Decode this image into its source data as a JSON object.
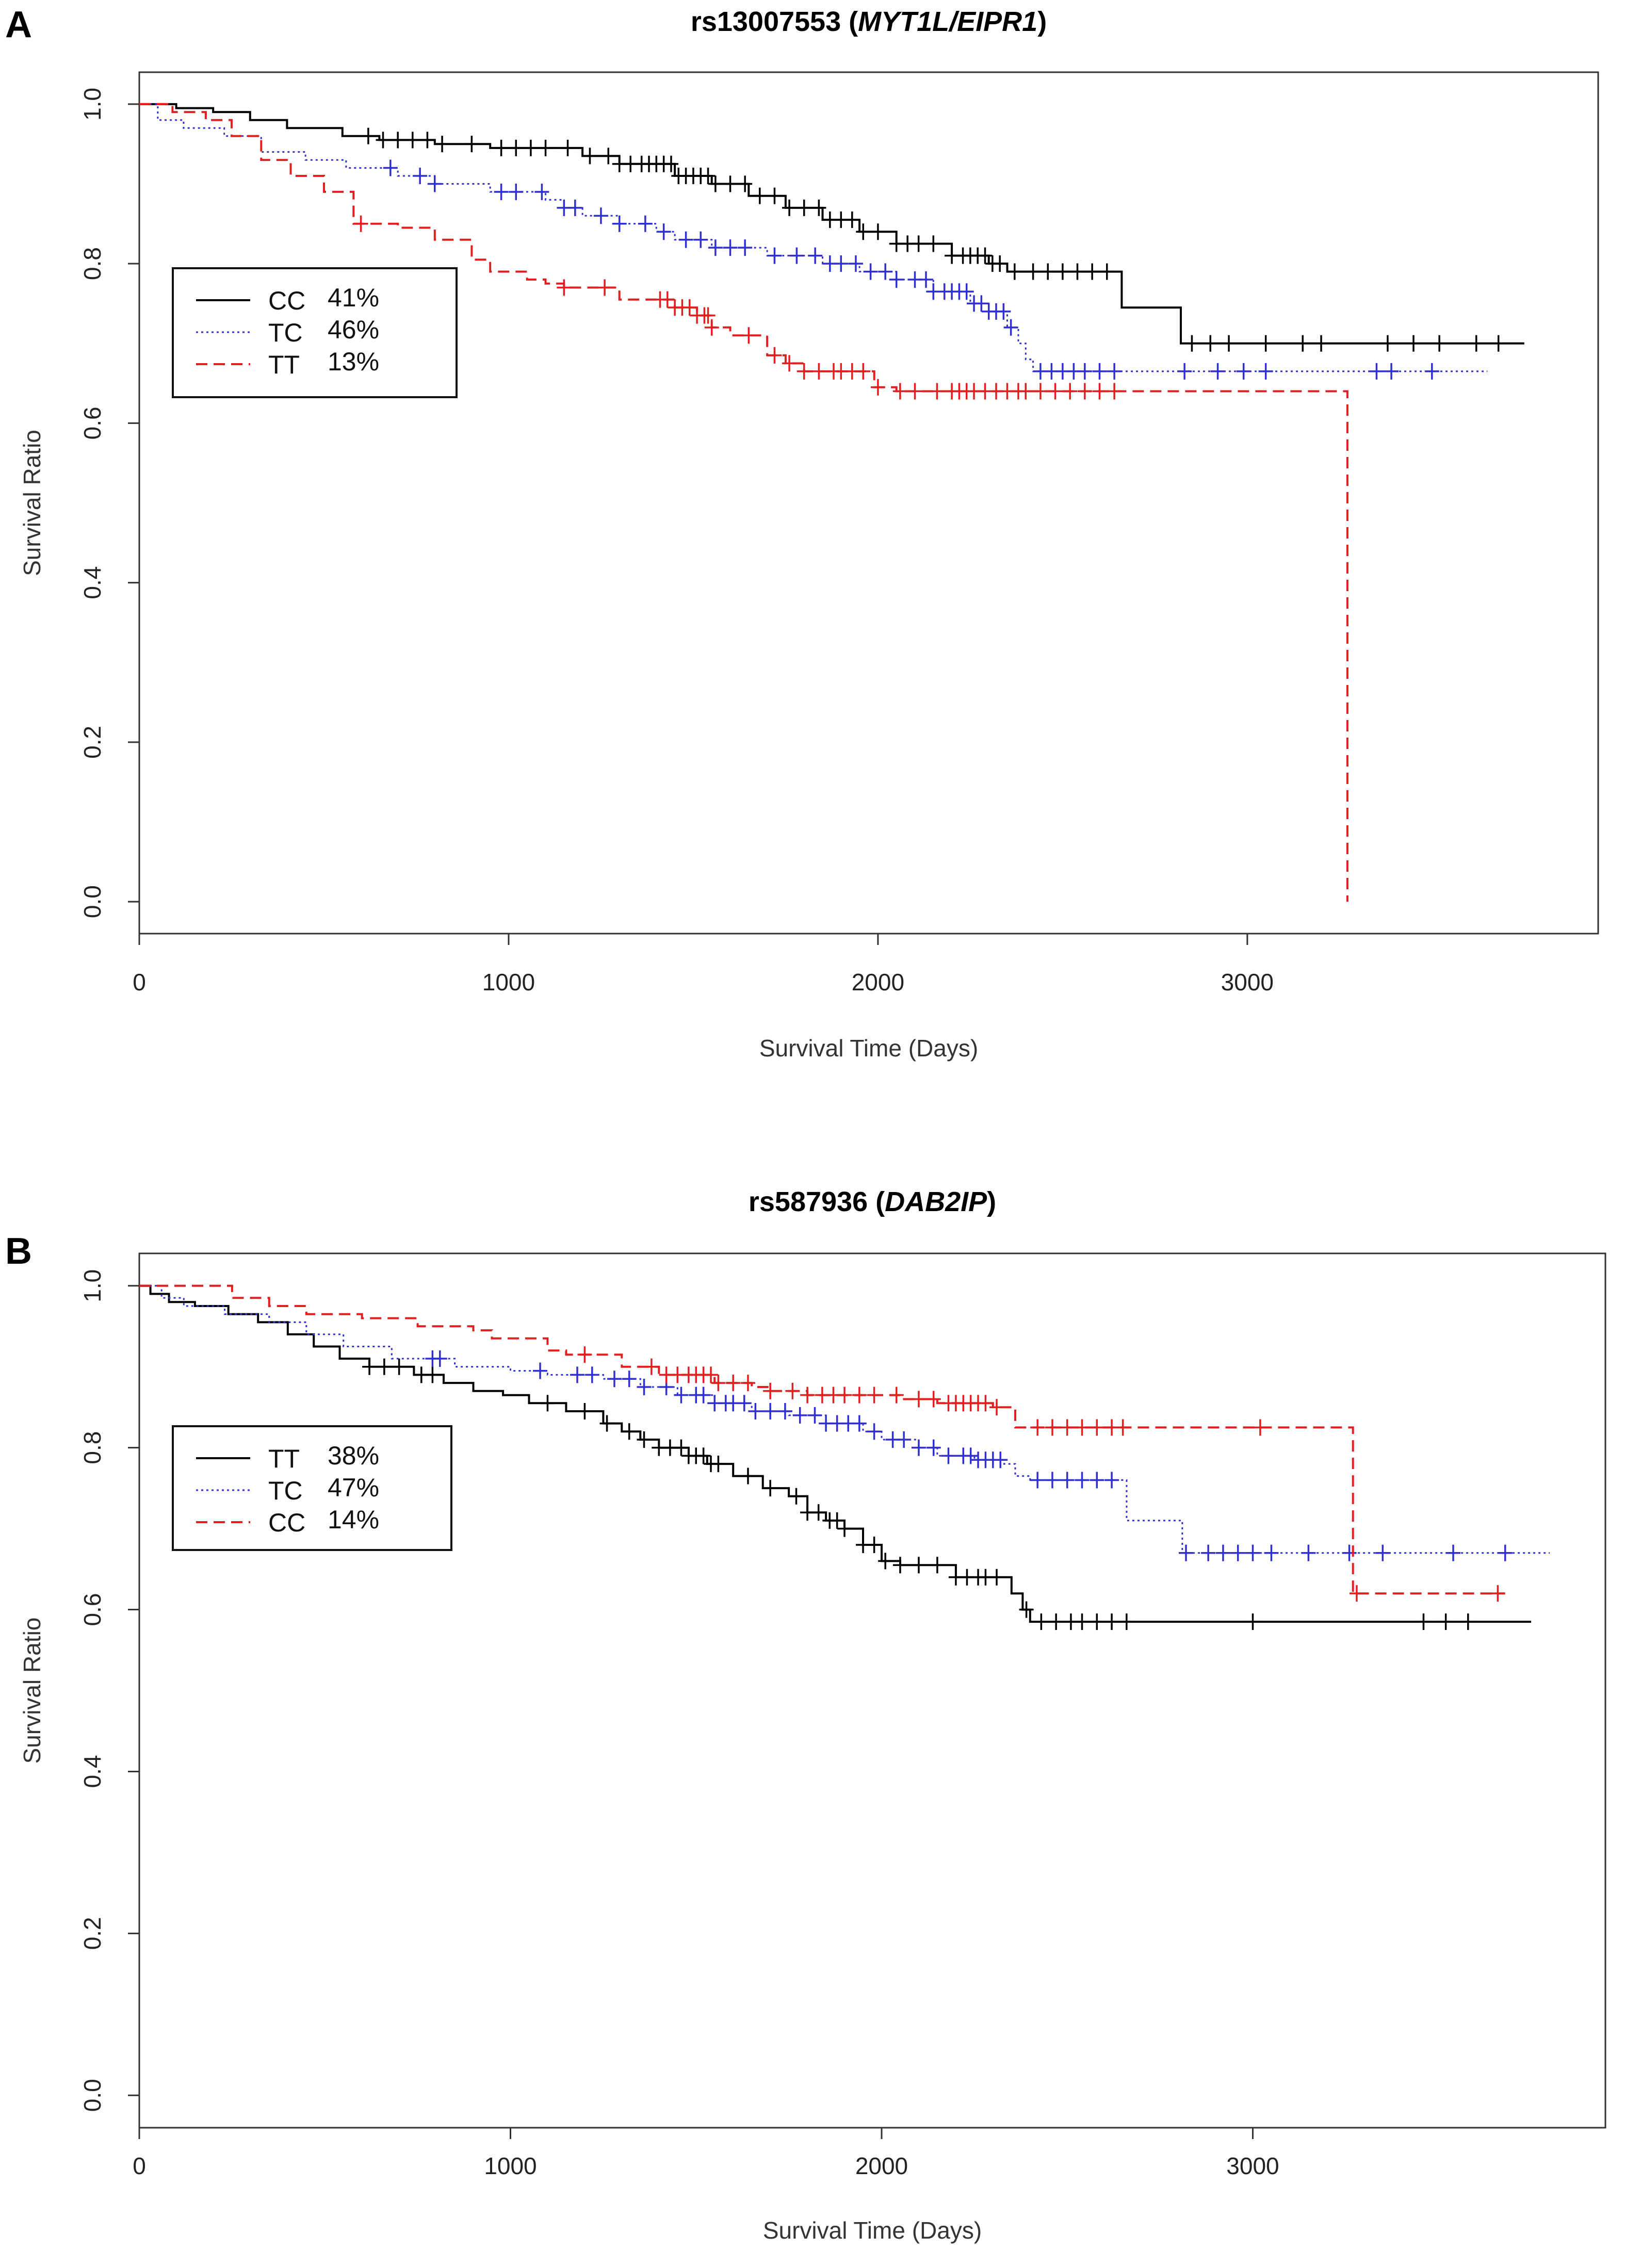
{
  "chart_data": [
    {
      "panel": "A",
      "type": "line",
      "title_plain": "rs13007553 (",
      "title_italic": "MYT1L/EIPR1",
      "title_end": ")",
      "xlabel": "Survival Time (Days)",
      "ylabel": "Survival Ratio",
      "xlim": [
        0,
        3950
      ],
      "ylim": [
        -0.04,
        1.04
      ],
      "xticks": [
        0,
        1000,
        2000,
        3000
      ],
      "yticks": [
        0.0,
        0.2,
        0.4,
        0.6,
        0.8,
        1.0
      ],
      "xtick_labels": [
        "0",
        "1000",
        "2000",
        "3000"
      ],
      "ytick_labels": [
        "0.0",
        "0.2",
        "0.4",
        "0.6",
        "0.8",
        "1.0"
      ],
      "legend_position": "upper-left",
      "series": [
        {
          "name": "CC",
          "percent": "41%",
          "color": "#000000",
          "style": "solid",
          "steps": [
            [
              0,
              1.0
            ],
            [
              100,
              0.995
            ],
            [
              200,
              0.99
            ],
            [
              300,
              0.98
            ],
            [
              400,
              0.97
            ],
            [
              550,
              0.96
            ],
            [
              650,
              0.955
            ],
            [
              800,
              0.95
            ],
            [
              950,
              0.945
            ],
            [
              1200,
              0.935
            ],
            [
              1300,
              0.925
            ],
            [
              1450,
              0.91
            ],
            [
              1550,
              0.9
            ],
            [
              1650,
              0.885
            ],
            [
              1750,
              0.87
            ],
            [
              1850,
              0.855
            ],
            [
              1950,
              0.84
            ],
            [
              2050,
              0.825
            ],
            [
              2200,
              0.81
            ],
            [
              2300,
              0.8
            ],
            [
              2350,
              0.79
            ],
            [
              2650,
              0.79
            ],
            [
              2660,
              0.745
            ],
            [
              2810,
              0.745
            ],
            [
              2820,
              0.7
            ],
            [
              3750,
              0.7
            ]
          ],
          "censors": [
            620,
            660,
            700,
            740,
            780,
            820,
            900,
            980,
            1020,
            1060,
            1100,
            1160,
            1220,
            1270,
            1300,
            1330,
            1360,
            1380,
            1400,
            1420,
            1440,
            1460,
            1480,
            1500,
            1520,
            1540,
            1560,
            1600,
            1640,
            1680,
            1720,
            1760,
            1800,
            1840,
            1870,
            1900,
            1930,
            1960,
            2000,
            2050,
            2080,
            2110,
            2150,
            2200,
            2230,
            2250,
            2270,
            2290,
            2310,
            2330,
            2370,
            2420,
            2460,
            2500,
            2540,
            2580,
            2620,
            2850,
            2900,
            2950,
            3050,
            3150,
            3200,
            3380,
            3450,
            3520,
            3620,
            3680
          ]
        },
        {
          "name": "TC",
          "percent": "46%",
          "color": "#3030d0",
          "style": "dotted",
          "steps": [
            [
              0,
              1.0
            ],
            [
              50,
              0.98
            ],
            [
              120,
              0.97
            ],
            [
              230,
              0.96
            ],
            [
              330,
              0.94
            ],
            [
              450,
              0.93
            ],
            [
              560,
              0.92
            ],
            [
              700,
              0.91
            ],
            [
              800,
              0.9
            ],
            [
              950,
              0.89
            ],
            [
              1100,
              0.88
            ],
            [
              1150,
              0.87
            ],
            [
              1200,
              0.86
            ],
            [
              1300,
              0.85
            ],
            [
              1400,
              0.84
            ],
            [
              1450,
              0.83
            ],
            [
              1550,
              0.82
            ],
            [
              1700,
              0.81
            ],
            [
              1850,
              0.8
            ],
            [
              1950,
              0.79
            ],
            [
              2050,
              0.78
            ],
            [
              2150,
              0.765
            ],
            [
              2250,
              0.75
            ],
            [
              2300,
              0.74
            ],
            [
              2350,
              0.72
            ],
            [
              2380,
              0.7
            ],
            [
              2400,
              0.68
            ],
            [
              2420,
              0.665
            ],
            [
              3650,
              0.665
            ]
          ],
          "censors": [
            680,
            760,
            800,
            980,
            1020,
            1090,
            1150,
            1180,
            1250,
            1300,
            1370,
            1420,
            1480,
            1520,
            1560,
            1600,
            1640,
            1720,
            1780,
            1830,
            1870,
            1900,
            1940,
            1980,
            2020,
            2050,
            2100,
            2130,
            2150,
            2180,
            2200,
            2220,
            2240,
            2260,
            2280,
            2300,
            2320,
            2340,
            2360,
            2440,
            2470,
            2500,
            2530,
            2560,
            2600,
            2640,
            2830,
            2920,
            2990,
            3050,
            3350,
            3390,
            3500
          ]
        },
        {
          "name": "TT",
          "percent": "13%",
          "color": "#e02020",
          "style": "dashed",
          "steps": [
            [
              0,
              1.0
            ],
            [
              90,
              0.99
            ],
            [
              180,
              0.98
            ],
            [
              250,
              0.96
            ],
            [
              330,
              0.93
            ],
            [
              410,
              0.91
            ],
            [
              500,
              0.89
            ],
            [
              580,
              0.85
            ],
            [
              700,
              0.845
            ],
            [
              800,
              0.83
            ],
            [
              900,
              0.805
            ],
            [
              950,
              0.79
            ],
            [
              1050,
              0.78
            ],
            [
              1100,
              0.775
            ],
            [
              1150,
              0.77
            ],
            [
              1300,
              0.755
            ],
            [
              1450,
              0.745
            ],
            [
              1510,
              0.735
            ],
            [
              1550,
              0.72
            ],
            [
              1600,
              0.71
            ],
            [
              1700,
              0.685
            ],
            [
              1750,
              0.675
            ],
            [
              1800,
              0.665
            ],
            [
              1990,
              0.645
            ],
            [
              2050,
              0.64
            ],
            [
              3270,
              0.64
            ],
            [
              3271,
              0.0
            ]
          ],
          "censors": [
            600,
            1150,
            1260,
            1410,
            1430,
            1450,
            1470,
            1490,
            1510,
            1530,
            1540,
            1550,
            1650,
            1720,
            1760,
            1800,
            1840,
            1880,
            1900,
            1930,
            1960,
            2000,
            2060,
            2100,
            2160,
            2200,
            2220,
            2240,
            2260,
            2290,
            2320,
            2350,
            2380,
            2400,
            2440,
            2480,
            2520,
            2560,
            2600,
            2640
          ]
        }
      ]
    },
    {
      "panel": "B",
      "type": "line",
      "title_plain": "rs587936 (",
      "title_italic": "DAB2IP",
      "title_end": ")",
      "xlabel": "Survival Time (Days)",
      "ylabel": "Survival Ratio",
      "xlim": [
        0,
        3950
      ],
      "ylim": [
        -0.04,
        1.04
      ],
      "xticks": [
        0,
        1000,
        2000,
        3000
      ],
      "yticks": [
        0.0,
        0.2,
        0.4,
        0.6,
        0.8,
        1.0
      ],
      "xtick_labels": [
        "0",
        "1000",
        "2000",
        "3000"
      ],
      "ytick_labels": [
        "0.0",
        "0.2",
        "0.4",
        "0.6",
        "0.8",
        "1.0"
      ],
      "legend_position": "middle-left",
      "series": [
        {
          "name": "TT",
          "percent": "38%",
          "color": "#000000",
          "style": "solid",
          "steps": [
            [
              0,
              1.0
            ],
            [
              30,
              0.99
            ],
            [
              80,
              0.98
            ],
            [
              150,
              0.975
            ],
            [
              240,
              0.965
            ],
            [
              320,
              0.955
            ],
            [
              400,
              0.94
            ],
            [
              470,
              0.925
            ],
            [
              540,
              0.91
            ],
            [
              620,
              0.9
            ],
            [
              740,
              0.89
            ],
            [
              820,
              0.88
            ],
            [
              900,
              0.87
            ],
            [
              980,
              0.865
            ],
            [
              1050,
              0.855
            ],
            [
              1150,
              0.845
            ],
            [
              1250,
              0.83
            ],
            [
              1300,
              0.82
            ],
            [
              1350,
              0.81
            ],
            [
              1400,
              0.8
            ],
            [
              1480,
              0.79
            ],
            [
              1530,
              0.78
            ],
            [
              1600,
              0.765
            ],
            [
              1680,
              0.75
            ],
            [
              1750,
              0.74
            ],
            [
              1800,
              0.72
            ],
            [
              1850,
              0.71
            ],
            [
              1900,
              0.7
            ],
            [
              1950,
              0.68
            ],
            [
              2000,
              0.66
            ],
            [
              2050,
              0.655
            ],
            [
              2200,
              0.64
            ],
            [
              2350,
              0.62
            ],
            [
              2380,
              0.6
            ],
            [
              2400,
              0.585
            ],
            [
              3750,
              0.585
            ]
          ],
          "censors": [
            620,
            660,
            700,
            760,
            790,
            1100,
            1200,
            1260,
            1320,
            1360,
            1400,
            1430,
            1460,
            1480,
            1500,
            1520,
            1540,
            1560,
            1640,
            1700,
            1770,
            1800,
            1830,
            1860,
            1880,
            1900,
            1950,
            1980,
            2010,
            2050,
            2100,
            2150,
            2200,
            2230,
            2260,
            2280,
            2310,
            2390,
            2430,
            2470,
            2510,
            2540,
            2580,
            2620,
            2660,
            3000,
            3460,
            3520,
            3580
          ]
        },
        {
          "name": "TC",
          "percent": "47%",
          "color": "#3030d0",
          "style": "dotted",
          "steps": [
            [
              0,
              1.0
            ],
            [
              60,
              0.985
            ],
            [
              120,
              0.975
            ],
            [
              230,
              0.965
            ],
            [
              350,
              0.955
            ],
            [
              450,
              0.94
            ],
            [
              550,
              0.925
            ],
            [
              680,
              0.91
            ],
            [
              850,
              0.9
            ],
            [
              1000,
              0.895
            ],
            [
              1100,
              0.89
            ],
            [
              1250,
              0.885
            ],
            [
              1350,
              0.875
            ],
            [
              1450,
              0.865
            ],
            [
              1550,
              0.855
            ],
            [
              1650,
              0.845
            ],
            [
              1750,
              0.84
            ],
            [
              1850,
              0.83
            ],
            [
              1950,
              0.82
            ],
            [
              2000,
              0.81
            ],
            [
              2100,
              0.8
            ],
            [
              2150,
              0.79
            ],
            [
              2250,
              0.785
            ],
            [
              2330,
              0.78
            ],
            [
              2360,
              0.765
            ],
            [
              2400,
              0.76
            ],
            [
              2650,
              0.76
            ],
            [
              2660,
              0.71
            ],
            [
              2800,
              0.71
            ],
            [
              2810,
              0.67
            ],
            [
              3800,
              0.67
            ]
          ],
          "censors": [
            790,
            810,
            1080,
            1180,
            1220,
            1280,
            1320,
            1360,
            1420,
            1460,
            1500,
            1520,
            1550,
            1580,
            1600,
            1630,
            1660,
            1700,
            1740,
            1780,
            1820,
            1850,
            1880,
            1910,
            1940,
            1980,
            2030,
            2060,
            2100,
            2140,
            2180,
            2220,
            2240,
            2260,
            2280,
            2300,
            2320,
            2420,
            2460,
            2500,
            2540,
            2580,
            2620,
            2820,
            2880,
            2920,
            2960,
            3000,
            3050,
            3150,
            3260,
            3350,
            3540,
            3680
          ]
        },
        {
          "name": "CC",
          "percent": "14%",
          "color": "#e02020",
          "style": "dashed",
          "steps": [
            [
              0,
              1.0
            ],
            [
              150,
              1.0
            ],
            [
              250,
              0.985
            ],
            [
              350,
              0.975
            ],
            [
              450,
              0.965
            ],
            [
              600,
              0.96
            ],
            [
              750,
              0.95
            ],
            [
              900,
              0.945
            ],
            [
              950,
              0.935
            ],
            [
              1100,
              0.92
            ],
            [
              1150,
              0.915
            ],
            [
              1300,
              0.9
            ],
            [
              1400,
              0.89
            ],
            [
              1550,
              0.88
            ],
            [
              1650,
              0.875
            ],
            [
              1700,
              0.87
            ],
            [
              1800,
              0.865
            ],
            [
              2050,
              0.86
            ],
            [
              2150,
              0.855
            ],
            [
              2300,
              0.85
            ],
            [
              2360,
              0.825
            ],
            [
              3260,
              0.825
            ],
            [
              3270,
              0.62
            ],
            [
              3680,
              0.62
            ]
          ],
          "censors": [
            1200,
            1380,
            1420,
            1450,
            1480,
            1500,
            1520,
            1540,
            1560,
            1600,
            1640,
            1700,
            1760,
            1800,
            1840,
            1870,
            1900,
            1940,
            1980,
            2040,
            2100,
            2140,
            2180,
            2200,
            2220,
            2240,
            2260,
            2280,
            2310,
            2420,
            2460,
            2500,
            2540,
            2580,
            2620,
            2650,
            3020,
            3280,
            3660
          ]
        }
      ]
    }
  ]
}
